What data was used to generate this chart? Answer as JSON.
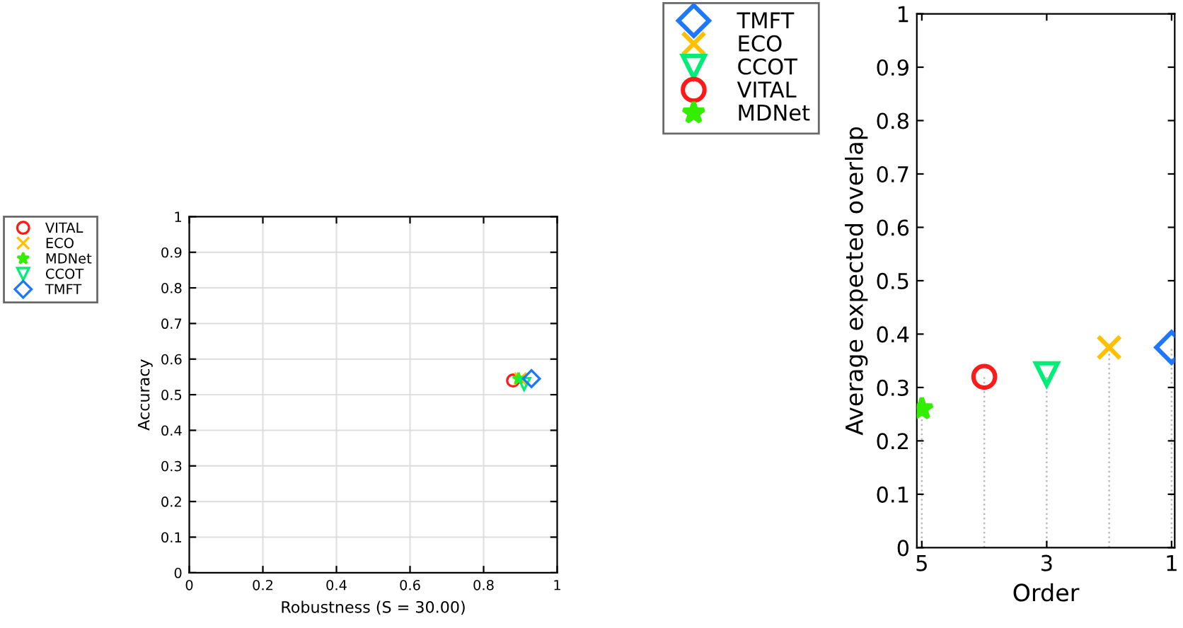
{
  "chart_data": [
    {
      "type": "scatter",
      "xlabel": "Robustness (S = 30.00)",
      "ylabel": "Accuracy",
      "xlim": [
        0,
        1
      ],
      "ylim": [
        0,
        1
      ],
      "xticks": [
        0,
        0.2,
        0.4,
        0.6,
        0.8,
        1
      ],
      "yticks": [
        0,
        0.1,
        0.2,
        0.3,
        0.4,
        0.5,
        0.6,
        0.7,
        0.8,
        0.9,
        1
      ],
      "grid": true,
      "legend": "left",
      "series": [
        {
          "name": "VITAL",
          "color": "#ff1a1a",
          "marker": "circle",
          "x": [
            0.88
          ],
          "values": [
            0.54
          ]
        },
        {
          "name": "ECO",
          "color": "#ffc000",
          "marker": "cross",
          "x": [
            0.9
          ],
          "values": [
            0.545
          ]
        },
        {
          "name": "MDNet",
          "color": "#33ee00",
          "marker": "star",
          "x": [
            0.895
          ],
          "values": [
            0.545
          ]
        },
        {
          "name": "CCOT",
          "color": "#00ee77",
          "marker": "triangle",
          "x": [
            0.91
          ],
          "values": [
            0.53
          ]
        },
        {
          "name": "TMFT",
          "color": "#1e78ff",
          "marker": "diamond",
          "x": [
            0.93
          ],
          "values": [
            0.545
          ]
        }
      ]
    },
    {
      "type": "lollipop",
      "xlabel": "Order",
      "ylabel": "Average expected overlap",
      "xlim": [
        5.08,
        0.95
      ],
      "ylim": [
        0,
        1
      ],
      "xticks": [
        5,
        3,
        1
      ],
      "yticks": [
        0,
        0.1,
        0.2,
        0.3,
        0.4,
        0.5,
        0.6,
        0.7,
        0.8,
        0.9,
        1
      ],
      "legend": "left",
      "line_style": "dotted",
      "series": [
        {
          "name": "TMFT",
          "color": "#1e78ff",
          "marker": "diamond",
          "x": [
            1
          ],
          "values": [
            0.375
          ]
        },
        {
          "name": "ECO",
          "color": "#ffc000",
          "marker": "cross",
          "x": [
            2
          ],
          "values": [
            0.375
          ]
        },
        {
          "name": "CCOT",
          "color": "#00ee77",
          "marker": "triangle",
          "x": [
            3
          ],
          "values": [
            0.325
          ]
        },
        {
          "name": "VITAL",
          "color": "#ff1a1a",
          "marker": "circle",
          "x": [
            4
          ],
          "values": [
            0.32
          ]
        },
        {
          "name": "MDNet",
          "color": "#33ee00",
          "marker": "star",
          "x": [
            5
          ],
          "values": [
            0.26
          ]
        }
      ]
    }
  ]
}
